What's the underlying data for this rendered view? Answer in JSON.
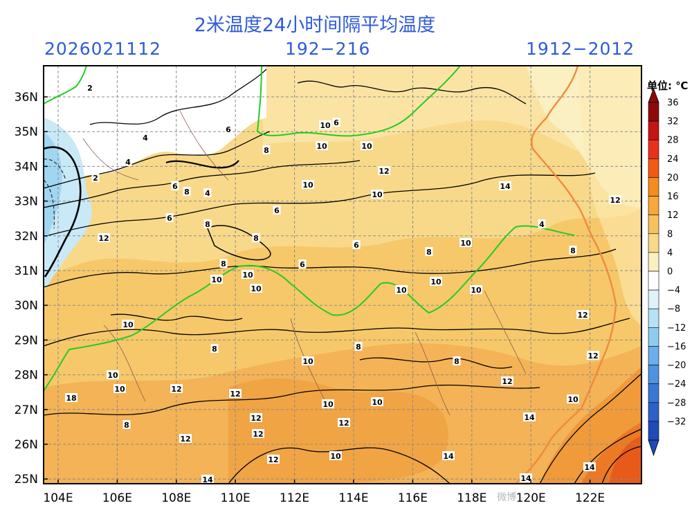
{
  "header": {
    "title": "2米温度24小时间隔平均温度",
    "init_time": "2026021112",
    "forecast_range": "192−216",
    "valid_range": "1912−2012"
  },
  "map": {
    "lon_ticks": [
      "104E",
      "106E",
      "108E",
      "110E",
      "112E",
      "114E",
      "116E",
      "118E",
      "120E",
      "122E"
    ],
    "lat_ticks": [
      "36N",
      "35N",
      "34N",
      "33N",
      "32N",
      "31N",
      "30N",
      "29N",
      "28N",
      "27N",
      "26N",
      "25N"
    ],
    "contour_labels": [
      "2",
      "4",
      "2",
      "4",
      "6",
      "8",
      "10",
      "10",
      "12",
      "6",
      "4",
      "6",
      "8",
      "8",
      "8",
      "10",
      "10",
      "10",
      "6",
      "6",
      "8",
      "10",
      "10",
      "10",
      "10",
      "6",
      "8",
      "10",
      "10",
      "10",
      "8",
      "8",
      "10",
      "8",
      "12",
      "10",
      "10",
      "10",
      "12",
      "12",
      "12",
      "12",
      "10",
      "10",
      "12",
      "12",
      "14",
      "14",
      "12",
      "12",
      "12",
      "12",
      "10",
      "14",
      "14",
      "14",
      "12",
      "18",
      "4",
      "8",
      "14",
      "10",
      "6",
      "8"
    ],
    "colorbar_unit": "单位: ℃",
    "colorbar": [
      {
        "label": "36",
        "color": "#8c0a0a"
      },
      {
        "label": "32",
        "color": "#c41414"
      },
      {
        "label": "28",
        "color": "#e8321e"
      },
      {
        "label": "24",
        "color": "#f25a14"
      },
      {
        "label": "20",
        "color": "#f58c1e"
      },
      {
        "label": "16",
        "color": "#f7a83a"
      },
      {
        "label": "12",
        "color": "#f6c25e"
      },
      {
        "label": "8",
        "color": "#f8d98a"
      },
      {
        "label": "4",
        "color": "#fbf0c2"
      },
      {
        "label": "0",
        "color": "#ffffff"
      },
      {
        "label": "−4",
        "color": "#dff2fa"
      },
      {
        "label": "−8",
        "color": "#b5e2f5"
      },
      {
        "label": "−12",
        "color": "#8ecbf0"
      },
      {
        "label": "−16",
        "color": "#6baeea"
      },
      {
        "label": "−20",
        "color": "#4f92e0"
      },
      {
        "label": "−24",
        "color": "#3b78d6"
      },
      {
        "label": "−28",
        "color": "#2d60c8"
      },
      {
        "label": "−32",
        "color": "#1f4ab8"
      }
    ],
    "colors": {
      "warm_base": "#f6c86a",
      "warm_dark": "#f3a94a",
      "hot": "#ef6a1e",
      "cool": "#fbecbf",
      "cold": "#c9e9f7",
      "boundary": "#22cc22",
      "coast": "#f08a3c"
    }
  },
  "watermark": "微博"
}
